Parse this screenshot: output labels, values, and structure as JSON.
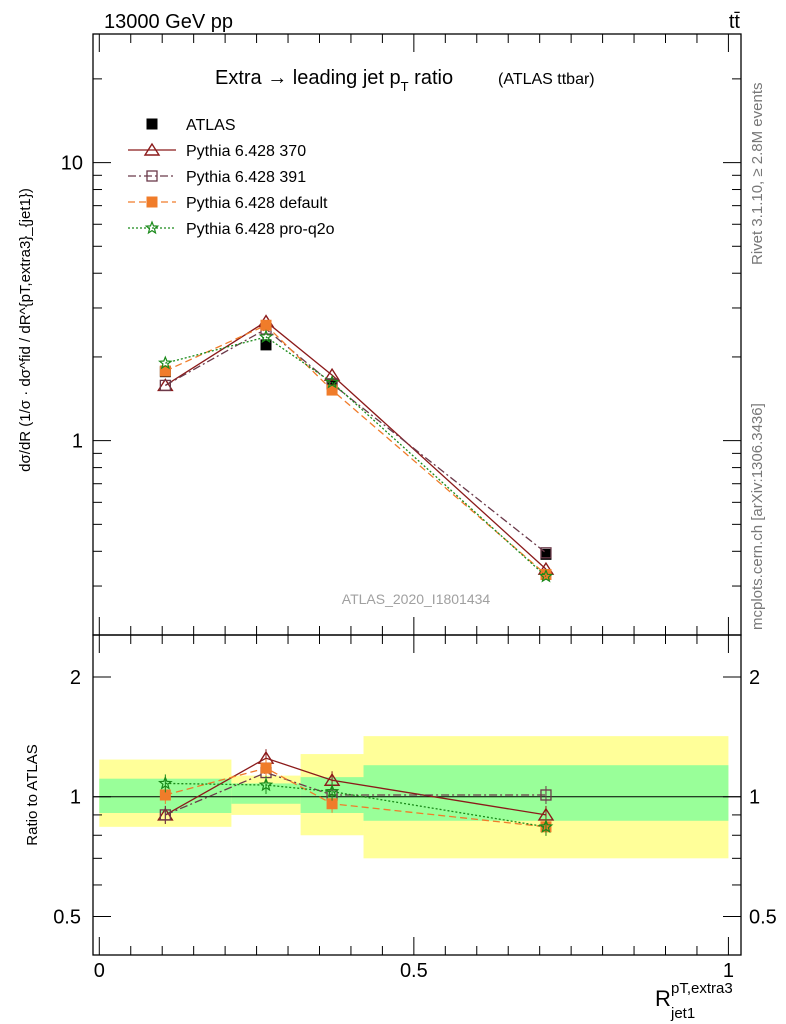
{
  "header": {
    "left": "13000 GeV pp",
    "right": "tt̄",
    "side_top": "Rivet 3.1.10, ≥ 2.8M events",
    "side_bottom": "mcplots.cern.ch [arXiv:1306.3436]",
    "watermark": "ATLAS_2020_I1801434"
  },
  "main_panel": {
    "title": "Extra → leading jet p",
    "title_sub": "T",
    "title_tail": " ratio",
    "title_note": "(ATLAS ttbar)",
    "ylabel": "dσ/dR  (1/σ · dσ^fid / dR^{pT,extra3}_{jet1})"
  },
  "ratio_panel": {
    "ylabel": "Ratio to ATLAS"
  },
  "xlabel": {
    "main": "R",
    "sup": "pT,extra3",
    "sub": "jet1"
  },
  "chart_data": [
    {
      "type": "line",
      "yscale": "log",
      "xlim": [
        -0.01,
        1.02
      ],
      "ylim": [
        0.2,
        29
      ],
      "yticks": [
        1,
        10
      ],
      "yticklabels": [
        "1",
        "10"
      ],
      "legend": "top-left",
      "x": [
        0.105,
        0.265,
        0.37,
        0.71
      ],
      "series": [
        {
          "name": "ATLAS",
          "color": "#000000",
          "marker": "square-filled",
          "dash": "none",
          "values": [
            1.77,
            2.21,
            1.6,
            0.39
          ]
        },
        {
          "name": "Pythia 6.428 370",
          "color": "#8b1a1a",
          "marker": "triangle-open",
          "dash": "solid",
          "values": [
            1.58,
            2.68,
            1.72,
            0.345
          ]
        },
        {
          "name": "Pythia 6.428 391",
          "color": "#6b3a4a",
          "marker": "square-open",
          "dash": "dashdot",
          "values": [
            1.58,
            2.52,
            1.6,
            0.395
          ]
        },
        {
          "name": "Pythia 6.428 default",
          "color": "#f07c2a",
          "marker": "square-filled",
          "dash": "dashed",
          "values": [
            1.78,
            2.6,
            1.52,
            0.33
          ]
        },
        {
          "name": "Pythia 6.428 pro-q2o",
          "color": "#1a8a1a",
          "marker": "star",
          "dash": "dotted",
          "values": [
            1.9,
            2.36,
            1.62,
            0.325
          ]
        }
      ]
    },
    {
      "type": "line",
      "yscale": "log",
      "xlim": [
        -0.01,
        1.02
      ],
      "ylim": [
        0.4,
        2.55
      ],
      "yticks": [
        0.5,
        1,
        2
      ],
      "yticklabels": [
        "0.5",
        "1",
        "2"
      ],
      "xticks": [
        0,
        0.5,
        1
      ],
      "xticklabels": [
        "0",
        "0.5",
        "1"
      ],
      "bands": {
        "edges": [
          0.0,
          0.21,
          0.32,
          0.42,
          1.0
        ],
        "inner": [
          [
            0.91,
            1.11
          ],
          [
            0.96,
            1.08
          ],
          [
            0.91,
            1.12
          ],
          [
            0.87,
            1.2
          ]
        ],
        "outer": [
          [
            0.84,
            1.24
          ],
          [
            0.9,
            1.13
          ],
          [
            0.8,
            1.28
          ],
          [
            0.7,
            1.42
          ]
        ]
      },
      "x": [
        0.105,
        0.265,
        0.37,
        0.71
      ],
      "series": [
        {
          "name": "Pythia 6.428 370",
          "values": [
            0.9,
            1.25,
            1.1,
            0.9
          ]
        },
        {
          "name": "Pythia 6.428 391",
          "values": [
            0.9,
            1.15,
            1.01,
            1.01
          ]
        },
        {
          "name": "Pythia 6.428 default",
          "values": [
            1.01,
            1.18,
            0.96,
            0.84
          ]
        },
        {
          "name": "Pythia 6.428 pro-q2o",
          "values": [
            1.08,
            1.07,
            1.03,
            0.84
          ]
        }
      ]
    }
  ],
  "colors": {
    "band_inner": "#99ff99",
    "band_outer": "#ffff99"
  }
}
